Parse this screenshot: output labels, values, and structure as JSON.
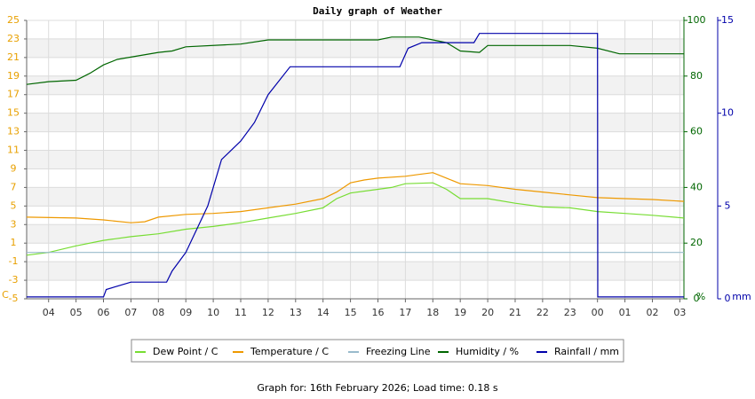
{
  "chart_data": {
    "type": "line",
    "title": "Daily graph of Weather",
    "footer": "Graph for: 16th February 2026; Load time: 0.18 s",
    "ylabel": "C",
    "y2label": "%",
    "y3label": "mm",
    "xlim": [
      3.2,
      27.15
    ],
    "xticks": [
      {
        "value": 4,
        "label": "04"
      },
      {
        "value": 5,
        "label": "05"
      },
      {
        "value": 6,
        "label": "06"
      },
      {
        "value": 7,
        "label": "07"
      },
      {
        "value": 8,
        "label": "08"
      },
      {
        "value": 9,
        "label": "09"
      },
      10,
      11,
      12,
      13,
      14,
      15,
      16,
      17,
      18,
      19,
      20,
      21,
      22,
      23,
      {
        "value": 24,
        "label": "00"
      },
      {
        "value": 25,
        "label": "01"
      },
      {
        "value": 26,
        "label": "02"
      },
      {
        "value": 27,
        "label": "03"
      }
    ],
    "ylim": [
      -5,
      25
    ],
    "yticks": [
      25,
      23,
      21,
      19,
      17,
      15,
      13,
      11,
      9,
      7,
      5,
      3,
      1,
      {
        "value": -1,
        "label": "-1"
      },
      {
        "value": -3,
        "label": "-3"
      },
      {
        "value": -5,
        "label": "-5"
      }
    ],
    "y2lim": [
      0,
      100
    ],
    "y2ticks": [
      100,
      80,
      60,
      40,
      20,
      0
    ],
    "y3lim": [
      0,
      15
    ],
    "y3ticks": [
      15,
      10,
      5,
      0
    ],
    "grid": true,
    "legend": "bottom",
    "series": [
      {
        "name": "Dew Point / C",
        "color": "#77dd33",
        "axis": "y",
        "x": [
          3.2,
          4,
          5,
          6,
          7,
          8,
          9,
          10,
          11,
          12,
          13,
          14,
          14.5,
          15,
          16,
          16.5,
          17,
          18,
          18.5,
          19,
          20,
          21,
          22,
          23,
          24,
          25,
          26,
          27.15
        ],
        "values": [
          -0.3,
          0,
          0.7,
          1.3,
          1.7,
          2.0,
          2.5,
          2.8,
          3.2,
          3.7,
          4.2,
          4.8,
          5.8,
          6.4,
          6.8,
          7.0,
          7.4,
          7.5,
          6.8,
          5.8,
          5.8,
          5.3,
          4.9,
          4.8,
          4.4,
          4.2,
          4.0,
          3.7
        ]
      },
      {
        "name": "Temperature / C",
        "color": "#ee9900",
        "axis": "y",
        "x": [
          3.2,
          5,
          6,
          7,
          7.5,
          8,
          9,
          10,
          11,
          12,
          13,
          14,
          14.5,
          15,
          15.5,
          16,
          17,
          17.5,
          18,
          18.5,
          19,
          20,
          21,
          22,
          23,
          24,
          25,
          26,
          27.15
        ],
        "values": [
          3.8,
          3.7,
          3.5,
          3.2,
          3.3,
          3.8,
          4.1,
          4.2,
          4.4,
          4.8,
          5.2,
          5.8,
          6.5,
          7.5,
          7.8,
          8.0,
          8.2,
          8.4,
          8.6,
          8.0,
          7.4,
          7.2,
          6.8,
          6.5,
          6.2,
          5.9,
          5.8,
          5.7,
          5.5
        ]
      },
      {
        "name": "Freezing Line",
        "color": "#99bbcc",
        "axis": "y",
        "x": [
          3.2,
          27.15
        ],
        "values": [
          0,
          0
        ]
      },
      {
        "name": "Humidity / %",
        "color": "#006600",
        "axis": "y2",
        "x": [
          3.2,
          4,
          5,
          5.5,
          6,
          6.5,
          8,
          8.5,
          9,
          11,
          12,
          16,
          16.5,
          17.5,
          18,
          18.5,
          19,
          19.7,
          20,
          23,
          24,
          24.8,
          27.15
        ],
        "values": [
          77,
          78,
          78.5,
          81,
          84,
          86,
          88.5,
          89,
          90.5,
          91.5,
          93,
          93,
          94,
          94,
          93,
          92,
          89,
          88.5,
          91,
          91,
          90,
          88,
          88
        ]
      },
      {
        "name": "Rainfall / mm",
        "color": "#0000aa",
        "axis": "y3",
        "x": [
          3.2,
          6,
          6.1,
          7,
          8.3,
          8.5,
          9,
          9.8,
          10.3,
          11,
          11.5,
          12,
          12.8,
          13,
          16.8,
          17.1,
          17.6,
          19.5,
          19.7,
          24,
          24.01,
          27.15
        ],
        "values": [
          0.1,
          0.1,
          0.5,
          0.9,
          0.9,
          1.5,
          2.5,
          5,
          7.5,
          8.5,
          9.5,
          11,
          12.5,
          12.5,
          12.5,
          13.5,
          13.8,
          13.8,
          14.3,
          14.3,
          0.1,
          0.1
        ]
      }
    ]
  }
}
